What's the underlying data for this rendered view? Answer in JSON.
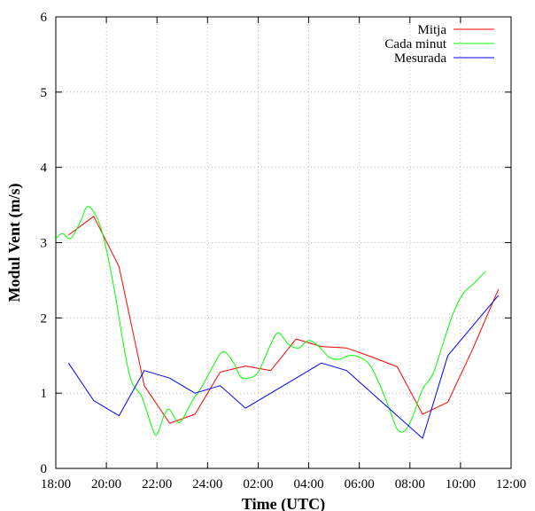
{
  "chart_data": {
    "type": "line",
    "xlabel": "Time (UTC)",
    "ylabel": "Modul Vent (m/s)",
    "xlim": [
      18,
      36
    ],
    "ylim": [
      0,
      6
    ],
    "x_ticks": [
      {
        "v": 18,
        "label": "18:00"
      },
      {
        "v": 20,
        "label": "20:00"
      },
      {
        "v": 22,
        "label": "22:00"
      },
      {
        "v": 24,
        "label": "24:00"
      },
      {
        "v": 26,
        "label": "02:00"
      },
      {
        "v": 28,
        "label": "04:00"
      },
      {
        "v": 30,
        "label": "06:00"
      },
      {
        "v": 32,
        "label": "08:00"
      },
      {
        "v": 34,
        "label": "10:00"
      },
      {
        "v": 36,
        "label": "12:00"
      }
    ],
    "y_ticks": [
      {
        "v": 0,
        "label": "0"
      },
      {
        "v": 1,
        "label": "1"
      },
      {
        "v": 2,
        "label": "2"
      },
      {
        "v": 3,
        "label": "3"
      },
      {
        "v": 4,
        "label": "4"
      },
      {
        "v": 5,
        "label": "5"
      },
      {
        "v": 6,
        "label": "6"
      }
    ],
    "grid": true,
    "legend_position": "top-right",
    "series": [
      {
        "name": "Mitja",
        "color": "#ff0000",
        "smooth": false,
        "points": [
          [
            18.5,
            3.1
          ],
          [
            19.5,
            3.35
          ],
          [
            20.5,
            2.68
          ],
          [
            21.5,
            1.1
          ],
          [
            22.5,
            0.6
          ],
          [
            23.5,
            0.72
          ],
          [
            24.5,
            1.28
          ],
          [
            25.5,
            1.36
          ],
          [
            26.5,
            1.3
          ],
          [
            27.5,
            1.72
          ],
          [
            28.5,
            1.62
          ],
          [
            29.5,
            1.6
          ],
          [
            30.5,
            1.48
          ],
          [
            31.5,
            1.35
          ],
          [
            32.5,
            0.72
          ],
          [
            33.5,
            0.88
          ],
          [
            34.5,
            1.6
          ],
          [
            35.5,
            2.38
          ]
        ]
      },
      {
        "name": "Cada minut",
        "color": "#00ff00",
        "smooth": true,
        "points": [
          [
            18.0,
            3.05
          ],
          [
            18.25,
            3.12
          ],
          [
            18.6,
            3.06
          ],
          [
            19.0,
            3.3
          ],
          [
            19.25,
            3.48
          ],
          [
            19.6,
            3.35
          ],
          [
            19.9,
            3.05
          ],
          [
            20.3,
            2.4
          ],
          [
            20.7,
            1.6
          ],
          [
            21.0,
            1.15
          ],
          [
            21.4,
            0.95
          ],
          [
            21.8,
            0.55
          ],
          [
            22.0,
            0.45
          ],
          [
            22.3,
            0.72
          ],
          [
            22.5,
            0.78
          ],
          [
            22.8,
            0.62
          ],
          [
            23.0,
            0.65
          ],
          [
            23.4,
            0.9
          ],
          [
            23.8,
            1.1
          ],
          [
            24.2,
            1.35
          ],
          [
            24.6,
            1.55
          ],
          [
            25.0,
            1.42
          ],
          [
            25.3,
            1.22
          ],
          [
            25.6,
            1.2
          ],
          [
            26.0,
            1.28
          ],
          [
            26.5,
            1.65
          ],
          [
            26.8,
            1.8
          ],
          [
            27.2,
            1.65
          ],
          [
            27.6,
            1.6
          ],
          [
            28.0,
            1.7
          ],
          [
            28.4,
            1.62
          ],
          [
            28.8,
            1.48
          ],
          [
            29.2,
            1.45
          ],
          [
            29.6,
            1.5
          ],
          [
            30.0,
            1.48
          ],
          [
            30.4,
            1.38
          ],
          [
            30.8,
            1.12
          ],
          [
            31.2,
            0.78
          ],
          [
            31.5,
            0.52
          ],
          [
            31.8,
            0.5
          ],
          [
            32.1,
            0.68
          ],
          [
            32.5,
            1.05
          ],
          [
            32.9,
            1.25
          ],
          [
            33.3,
            1.65
          ],
          [
            33.7,
            2.05
          ],
          [
            34.1,
            2.32
          ],
          [
            34.5,
            2.45
          ],
          [
            35.0,
            2.62
          ]
        ]
      },
      {
        "name": "Mesurada",
        "color": "#0000ff",
        "smooth": false,
        "points": [
          [
            18.5,
            1.4
          ],
          [
            19.5,
            0.9
          ],
          [
            20.5,
            0.7
          ],
          [
            21.5,
            1.3
          ],
          [
            22.5,
            1.2
          ],
          [
            23.5,
            1.0
          ],
          [
            24.5,
            1.1
          ],
          [
            25.5,
            0.8
          ],
          [
            27.5,
            1.2
          ],
          [
            28.5,
            1.4
          ],
          [
            29.5,
            1.3
          ],
          [
            32.5,
            0.4
          ],
          [
            33.5,
            1.5
          ],
          [
            35.5,
            2.3
          ]
        ]
      }
    ]
  }
}
